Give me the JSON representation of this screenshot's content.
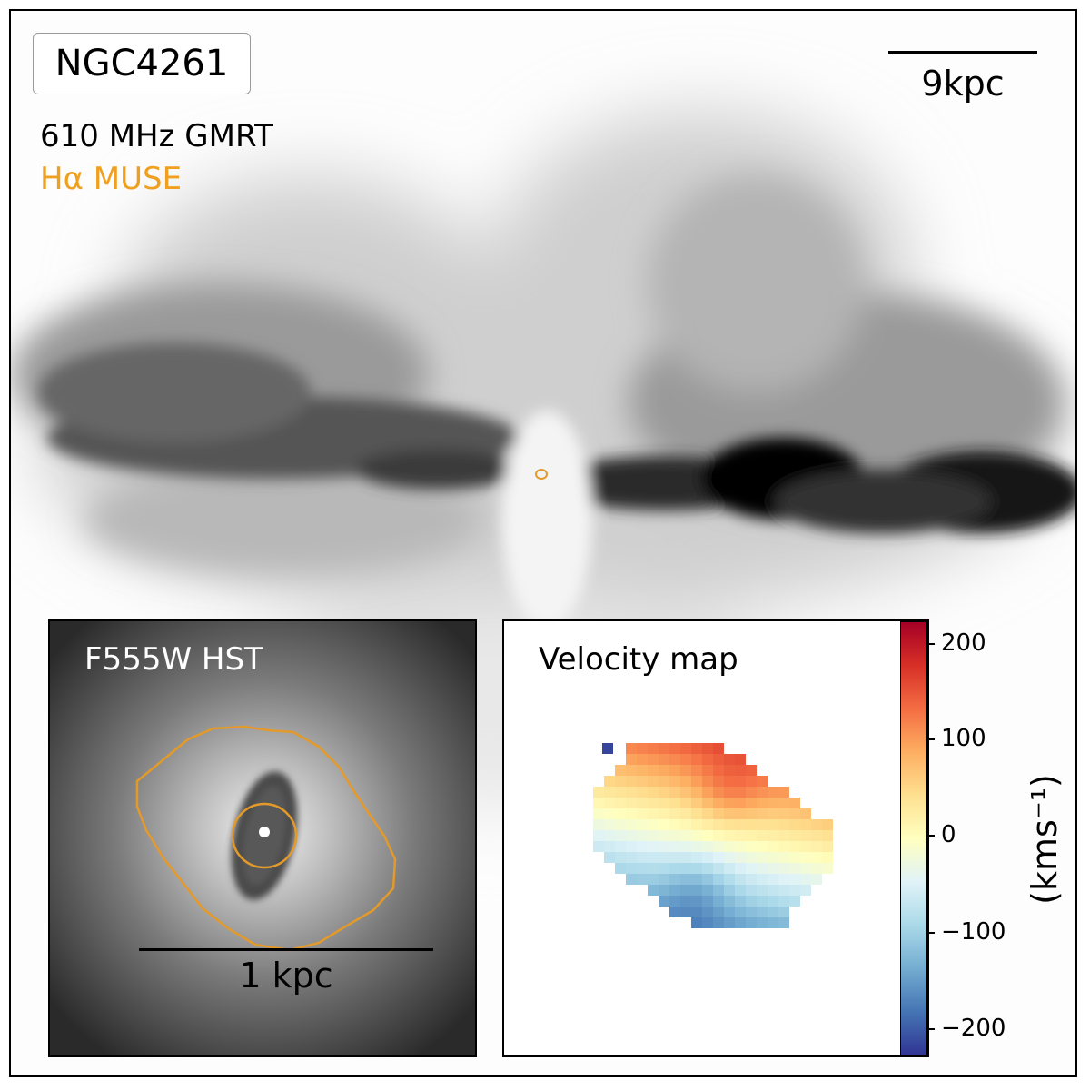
{
  "title": "NGC4261",
  "legend": [
    {
      "text": "610 MHz GMRT",
      "color": "#000000"
    },
    {
      "text": "Hα MUSE",
      "color": "#f0a020"
    }
  ],
  "scalebar_main": "9kpc",
  "contour_color": "#e39a2a",
  "insets": {
    "hst": {
      "title": "F555W HST",
      "scalebar": "1 kpc"
    },
    "velocity": {
      "title": "Velocity map",
      "colorbar": {
        "ticks": [
          "200",
          "100",
          "0",
          "−100",
          "−200"
        ],
        "unit": "(kms⁻¹)",
        "range": [
          -220,
          220
        ],
        "colors": [
          "#313695",
          "#4575b4",
          "#74add1",
          "#abd9e9",
          "#e0f3f8",
          "#ffffbf",
          "#fee090",
          "#fdae61",
          "#f46d43",
          "#d73027",
          "#a50026"
        ]
      }
    }
  }
}
